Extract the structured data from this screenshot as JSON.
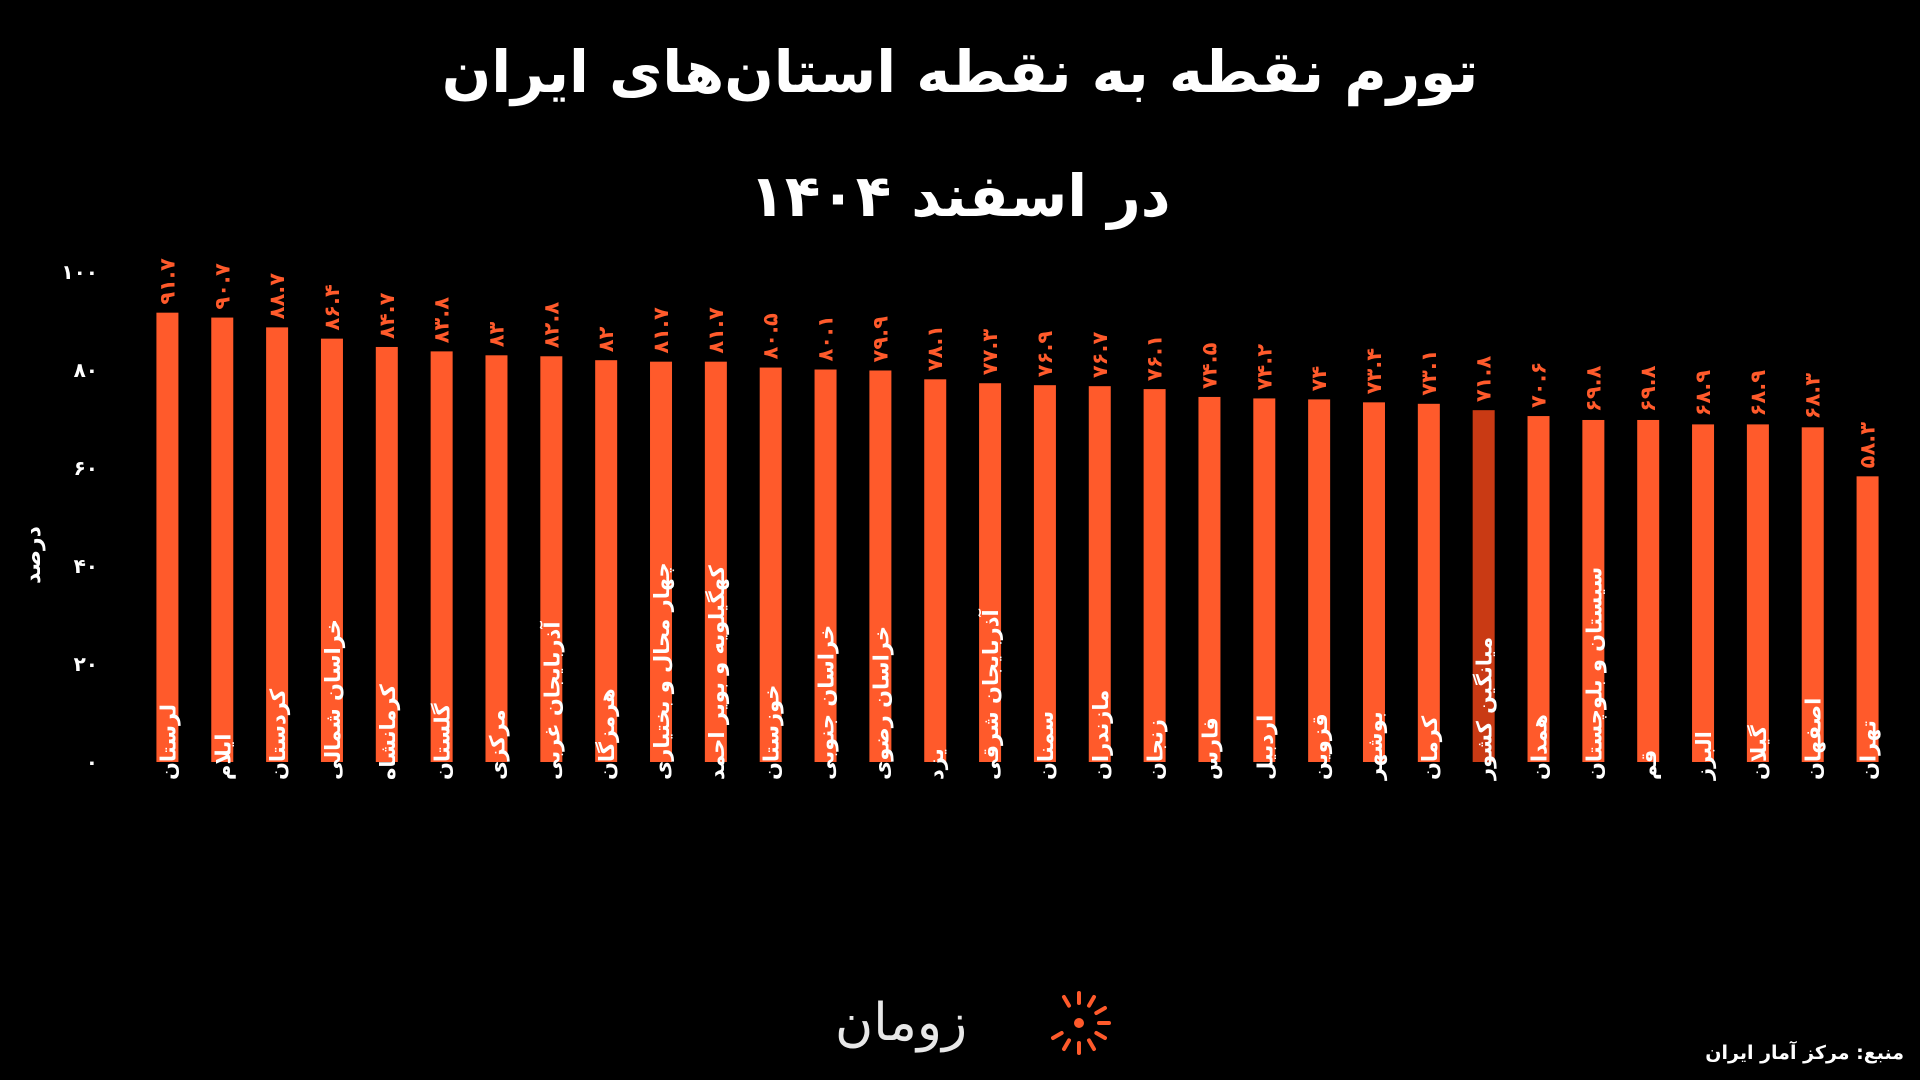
{
  "title": {
    "line1": "تورم نقطه به نقطه استان‌های ایران",
    "line2": "در اسفند ۱۴۰۴"
  },
  "colors": {
    "background": "#000000",
    "bar": "#ff5a2b",
    "highlight_bar": "#c93a14",
    "value_label": "#ff5a2b",
    "text": "#ffffff"
  },
  "logo": {
    "text": "زومان",
    "icon": "zoomit-sun-icon"
  },
  "source": "منبع: مرکز آمار ایران",
  "chart_data": {
    "type": "bar",
    "ylabel": "درصد",
    "ylim": [
      0,
      100
    ],
    "yticks": [
      0,
      20,
      40,
      60,
      80,
      100
    ],
    "ytick_labels": [
      "۰",
      "۲۰",
      "۴۰",
      "۶۰",
      "۸۰",
      "۱۰۰"
    ],
    "grid": false,
    "categories": [
      "لرستان",
      "ایلام",
      "کردستان",
      "خراسان شمالی",
      "کرمانشاه",
      "گلستان",
      "مرکزی",
      "آذربایجان غربی",
      "هرمزگان",
      "چهار محال و بختیاری",
      "کهگیلویه و بویر احمد",
      "خوزستان",
      "خراسان جنوبی",
      "خراسان رضوی",
      "یزد",
      "آذربایجان شرقی",
      "سمنان",
      "مازندران",
      "زنجان",
      "فارس",
      "اردبیل",
      "قزوین",
      "بوشهر",
      "کرمان",
      "میانگین کشور",
      "همدان",
      "سیستان و بلوچستان",
      "قم",
      "البرز",
      "گیلان",
      "اصفهان",
      "تهران"
    ],
    "values": [
      91.7,
      90.7,
      88.7,
      86.4,
      84.7,
      83.8,
      83,
      82.8,
      82,
      81.7,
      81.7,
      80.5,
      80.1,
      79.9,
      78.1,
      77.3,
      76.9,
      76.7,
      76.1,
      74.5,
      74.2,
      74,
      73.4,
      73.1,
      71.8,
      70.6,
      69.8,
      69.8,
      68.9,
      68.9,
      68.3,
      58.3
    ],
    "value_labels": [
      "۹۱.۷",
      "۹۰.۷",
      "۸۸.۷",
      "۸۶.۴",
      "۸۴.۷",
      "۸۳.۸",
      "۸۳",
      "۸۲.۸",
      "۸۲",
      "۸۱.۷",
      "۸۱.۷",
      "۸۰.۵",
      "۸۰.۱",
      "۷۹.۹",
      "۷۸.۱",
      "۷۷.۳",
      "۷۶.۹",
      "۷۶.۷",
      "۷۶.۱",
      "۷۴.۵",
      "۷۴.۲",
      "۷۴",
      "۷۳.۴",
      "۷۳.۱",
      "۷۱.۸",
      "۷۰.۶",
      "۶۹.۸",
      "۶۹.۸",
      "۶۸.۹",
      "۶۸.۹",
      "۶۸.۳",
      "۵۸.۳"
    ],
    "highlight": "میانگین کشور"
  }
}
